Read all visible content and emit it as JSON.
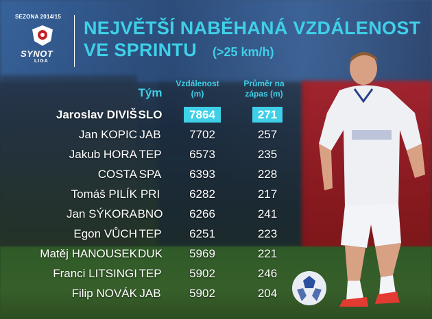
{
  "header": {
    "season": "SEZONA 2014/15",
    "logo_text": "SYNOT",
    "logo_sub": "LIGA",
    "title_line1": "NEJVĚTŠÍ NABĚHANÁ VZDÁLENOST",
    "title_line2": "VE SPRINTU",
    "title_sub": "(>25 km/h)"
  },
  "columns": {
    "team": "Tým",
    "distance": "Vzdálenost (m)",
    "average": "Průměr na zápas (m)"
  },
  "rows": [
    {
      "name": "Jaroslav DIVIŠ",
      "team": "SLO",
      "distance": "7864",
      "average": "271"
    },
    {
      "name": "Jan KOPIC",
      "team": "JAB",
      "distance": "7702",
      "average": "257"
    },
    {
      "name": "Jakub HORA",
      "team": "TEP",
      "distance": "6573",
      "average": "235"
    },
    {
      "name": "COSTA",
      "team": "SPA",
      "distance": "6393",
      "average": "228"
    },
    {
      "name": "Tomáš PILÍK",
      "team": "PRI",
      "distance": "6282",
      "average": "217"
    },
    {
      "name": "Jan SÝKORA",
      "team": "BNO",
      "distance": "6266",
      "average": "241"
    },
    {
      "name": "Egon VŮCH",
      "team": "TEP",
      "distance": "6251",
      "average": "223"
    },
    {
      "name": "Matěj HANOUSEK",
      "team": "DUK",
      "distance": "5969",
      "average": "221"
    },
    {
      "name": "Franci LITSINGI",
      "team": "TEP",
      "distance": "5902",
      "average": "246"
    },
    {
      "name": "Filip NOVÁK",
      "team": "JAB",
      "distance": "5902",
      "average": "204"
    }
  ],
  "colors": {
    "accent": "#3fd0e8",
    "text": "#ffffff"
  },
  "icons": {
    "logo": "synot-liga-badge-icon",
    "ball": "football-icon"
  }
}
